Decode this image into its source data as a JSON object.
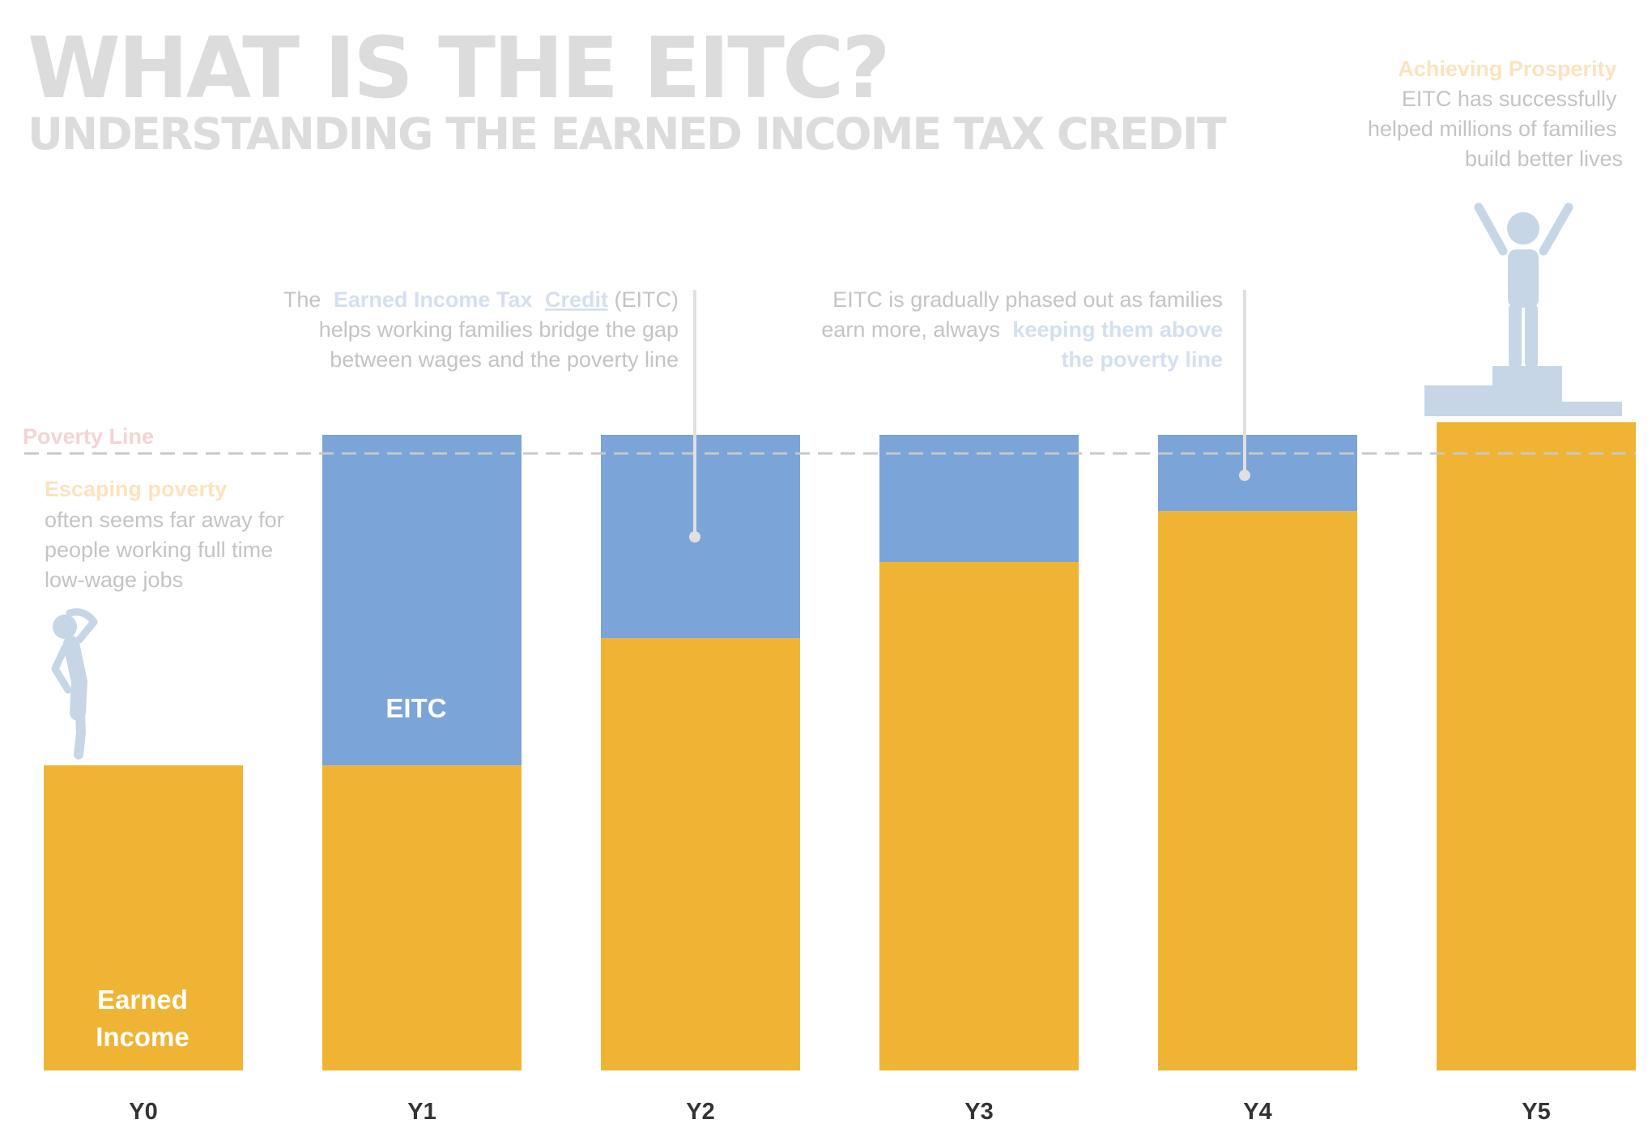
{
  "header": {
    "title": "WHAT IS THE EITC?",
    "subtitle": "UNDERSTANDING THE EARNED INCOME TAX CREDIT"
  },
  "colors": {
    "earned": "#f0b434",
    "eitc": "#7ba4d8",
    "figure": "#c6d6e6",
    "poverty_line": "#c8c8c8",
    "leader": "#e0e0e0"
  },
  "annotations": {
    "poverty": {
      "lead": "Escaping poverty",
      "lines": [
        "often seems far away for",
        "people working full time",
        "low-wage jobs"
      ]
    },
    "eitc_intro": {
      "prefix": "The",
      "highlight": "Earned Income Tax",
      "highlight_u": "Credit",
      "suffix": " (EITC)",
      "lines": [
        "helps working families bridge the gap",
        "between wages and the poverty line"
      ]
    },
    "phase_out": {
      "line1": "EITC is gradually phased out as families",
      "line2_plain": "earn more, always",
      "line2_bold": "keeping them above",
      "line3_bold": "the poverty line"
    },
    "prosperity": {
      "lead": "Achieving Prosperity",
      "lines": [
        "EITC has successfully",
        "helped millions of families",
        "build better lives"
      ]
    }
  },
  "icons": [
    "worried-person-icon",
    "celebrating-person-icon",
    "podium-icon"
  ],
  "chart_data": {
    "type": "bar",
    "stacked": true,
    "categories": [
      "Y0",
      "Y1",
      "Y2",
      "Y3",
      "Y4",
      "Y5"
    ],
    "series": [
      {
        "name": "Earned Income",
        "label_lines": [
          "Earned",
          "Income"
        ],
        "values": [
          48,
          48,
          68,
          80,
          88,
          102
        ]
      },
      {
        "name": "EITC",
        "values": [
          0,
          52,
          32,
          20,
          12,
          0
        ]
      }
    ],
    "poverty_line": {
      "label": "Poverty Line",
      "value": 100
    },
    "ylim": [
      0,
      100
    ],
    "legend": "none",
    "grid": false
  }
}
